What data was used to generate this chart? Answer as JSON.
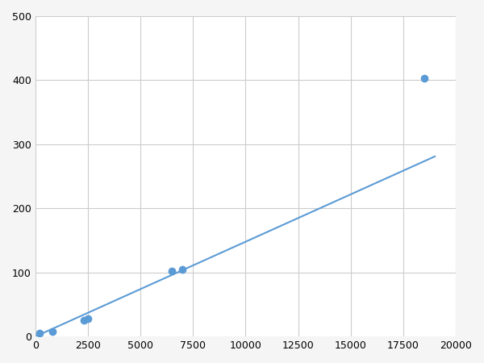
{
  "x": [
    200,
    800,
    2300,
    2500,
    6500,
    7000,
    18500
  ],
  "y": [
    5,
    8,
    25,
    28,
    102,
    105,
    403
  ],
  "line_color": "#5b9bd5",
  "marker_color": "#5b9bd5",
  "marker_size": 6,
  "linewidth": 1.5,
  "xlim": [
    0,
    20000
  ],
  "ylim": [
    0,
    500
  ],
  "xticks": [
    0,
    2500,
    5000,
    7500,
    10000,
    12500,
    15000,
    17500,
    20000
  ],
  "yticks": [
    0,
    100,
    200,
    300,
    400,
    500
  ],
  "grid_color": "#cccccc",
  "background_color": "#ffffff",
  "figure_bg": "#f5f5f5"
}
